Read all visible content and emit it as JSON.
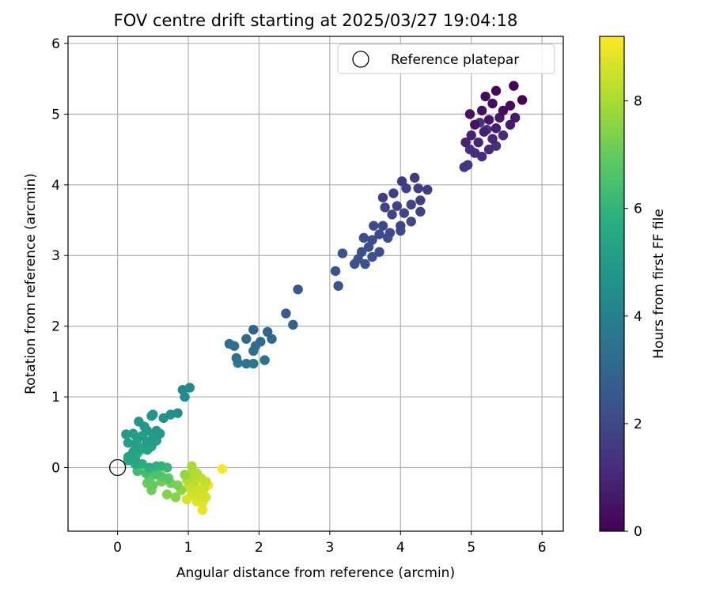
{
  "chart_data": {
    "type": "scatter",
    "title": "FOV centre drift starting at 2025/03/27 19:04:18",
    "xlabel": "Angular distance from reference (arcmin)",
    "ylabel": "Rotation from reference (arcmin)",
    "xlim": [
      -0.7,
      6.3
    ],
    "ylim": [
      -0.9,
      6.1
    ],
    "xticks": [
      0,
      1,
      2,
      3,
      4,
      5,
      6
    ],
    "yticks": [
      0,
      1,
      2,
      3,
      4,
      5,
      6
    ],
    "grid": true,
    "legend": {
      "placement": "top-right",
      "entries": [
        "Reference platepar"
      ]
    },
    "reference_point": {
      "x": 0,
      "y": 0,
      "label": "Reference platepar"
    },
    "colorbar": {
      "label": "Hours from first FF file",
      "colormap": "viridis",
      "range": [
        0,
        9.2
      ],
      "ticks": [
        0,
        2,
        4,
        6,
        8
      ]
    },
    "points": [
      {
        "x": 5.6,
        "y": 5.4,
        "h": 0.05
      },
      {
        "x": 5.72,
        "y": 5.2,
        "h": 0.1
      },
      {
        "x": 5.35,
        "y": 5.33,
        "h": 0.15
      },
      {
        "x": 5.2,
        "y": 5.25,
        "h": 0.2
      },
      {
        "x": 5.55,
        "y": 5.12,
        "h": 0.25
      },
      {
        "x": 5.45,
        "y": 5.05,
        "h": 0.3
      },
      {
        "x": 5.3,
        "y": 5.15,
        "h": 0.35
      },
      {
        "x": 5.15,
        "y": 5.05,
        "h": 0.4
      },
      {
        "x": 4.98,
        "y": 5.0,
        "h": 0.45
      },
      {
        "x": 5.05,
        "y": 4.85,
        "h": 0.5
      },
      {
        "x": 5.25,
        "y": 4.92,
        "h": 0.55
      },
      {
        "x": 5.4,
        "y": 4.95,
        "h": 0.6
      },
      {
        "x": 5.62,
        "y": 4.95,
        "h": 0.65
      },
      {
        "x": 5.55,
        "y": 4.85,
        "h": 0.7
      },
      {
        "x": 5.35,
        "y": 4.8,
        "h": 0.75
      },
      {
        "x": 5.18,
        "y": 4.75,
        "h": 0.8
      },
      {
        "x": 5.0,
        "y": 4.7,
        "h": 0.85
      },
      {
        "x": 4.92,
        "y": 4.6,
        "h": 0.9
      },
      {
        "x": 5.1,
        "y": 4.6,
        "h": 0.95
      },
      {
        "x": 5.3,
        "y": 4.65,
        "h": 1.0
      },
      {
        "x": 5.45,
        "y": 4.7,
        "h": 1.05
      },
      {
        "x": 5.25,
        "y": 4.5,
        "h": 1.1
      },
      {
        "x": 5.05,
        "y": 4.45,
        "h": 1.15
      },
      {
        "x": 5.15,
        "y": 4.4,
        "h": 1.2
      },
      {
        "x": 4.98,
        "y": 4.5,
        "h": 1.25
      },
      {
        "x": 5.35,
        "y": 4.55,
        "h": 1.3
      },
      {
        "x": 5.12,
        "y": 4.88,
        "h": 1.35
      },
      {
        "x": 5.22,
        "y": 4.78,
        "h": 1.4
      },
      {
        "x": 4.9,
        "y": 4.25,
        "h": 1.45
      },
      {
        "x": 4.95,
        "y": 4.28,
        "h": 1.5
      },
      {
        "x": 4.2,
        "y": 4.1,
        "h": 1.55
      },
      {
        "x": 4.02,
        "y": 4.05,
        "h": 1.6
      },
      {
        "x": 4.38,
        "y": 3.93,
        "h": 1.62
      },
      {
        "x": 4.25,
        "y": 3.95,
        "h": 1.65
      },
      {
        "x": 4.08,
        "y": 3.95,
        "h": 1.7
      },
      {
        "x": 3.9,
        "y": 3.88,
        "h": 1.72
      },
      {
        "x": 3.75,
        "y": 3.82,
        "h": 1.75
      },
      {
        "x": 4.28,
        "y": 3.78,
        "h": 1.78
      },
      {
        "x": 4.15,
        "y": 3.72,
        "h": 1.8
      },
      {
        "x": 3.95,
        "y": 3.7,
        "h": 1.82
      },
      {
        "x": 3.78,
        "y": 3.68,
        "h": 1.85
      },
      {
        "x": 4.28,
        "y": 3.62,
        "h": 1.88
      },
      {
        "x": 4.05,
        "y": 3.6,
        "h": 1.9
      },
      {
        "x": 3.88,
        "y": 3.58,
        "h": 1.92
      },
      {
        "x": 4.15,
        "y": 3.48,
        "h": 1.95
      },
      {
        "x": 4.0,
        "y": 3.42,
        "h": 1.97
      },
      {
        "x": 3.75,
        "y": 3.42,
        "h": 2.0
      },
      {
        "x": 3.62,
        "y": 3.42,
        "h": 2.02
      },
      {
        "x": 4.0,
        "y": 3.35,
        "h": 2.05
      },
      {
        "x": 3.85,
        "y": 3.32,
        "h": 2.07
      },
      {
        "x": 3.7,
        "y": 3.3,
        "h": 2.1
      },
      {
        "x": 3.82,
        "y": 3.25,
        "h": 2.12
      },
      {
        "x": 3.6,
        "y": 3.22,
        "h": 2.15
      },
      {
        "x": 3.48,
        "y": 3.25,
        "h": 2.17
      },
      {
        "x": 3.55,
        "y": 3.12,
        "h": 2.2
      },
      {
        "x": 3.7,
        "y": 3.05,
        "h": 2.22
      },
      {
        "x": 3.45,
        "y": 3.05,
        "h": 2.25
      },
      {
        "x": 3.6,
        "y": 2.98,
        "h": 2.27
      },
      {
        "x": 3.4,
        "y": 2.95,
        "h": 2.3
      },
      {
        "x": 3.5,
        "y": 2.88,
        "h": 2.32
      },
      {
        "x": 3.35,
        "y": 2.88,
        "h": 2.35
      },
      {
        "x": 3.18,
        "y": 3.03,
        "h": 2.38
      },
      {
        "x": 3.08,
        "y": 2.78,
        "h": 2.4
      },
      {
        "x": 3.12,
        "y": 2.57,
        "h": 2.45
      },
      {
        "x": 2.55,
        "y": 2.52,
        "h": 2.55
      },
      {
        "x": 2.38,
        "y": 2.18,
        "h": 2.65
      },
      {
        "x": 2.48,
        "y": 2.02,
        "h": 2.75
      },
      {
        "x": 1.92,
        "y": 1.95,
        "h": 3.0
      },
      {
        "x": 2.12,
        "y": 1.92,
        "h": 3.05
      },
      {
        "x": 2.18,
        "y": 1.82,
        "h": 3.1
      },
      {
        "x": 1.82,
        "y": 1.82,
        "h": 3.15
      },
      {
        "x": 2.02,
        "y": 1.78,
        "h": 3.2
      },
      {
        "x": 1.95,
        "y": 1.72,
        "h": 3.25
      },
      {
        "x": 1.58,
        "y": 1.75,
        "h": 3.3
      },
      {
        "x": 1.65,
        "y": 1.72,
        "h": 3.35
      },
      {
        "x": 1.92,
        "y": 1.65,
        "h": 3.4
      },
      {
        "x": 1.68,
        "y": 1.55,
        "h": 3.45
      },
      {
        "x": 2.08,
        "y": 1.52,
        "h": 3.5
      },
      {
        "x": 1.7,
        "y": 1.48,
        "h": 3.55
      },
      {
        "x": 1.82,
        "y": 1.47,
        "h": 3.6
      },
      {
        "x": 1.92,
        "y": 1.47,
        "h": 3.65
      },
      {
        "x": 1.02,
        "y": 1.13,
        "h": 4.3
      },
      {
        "x": 0.92,
        "y": 1.1,
        "h": 4.35
      },
      {
        "x": 0.95,
        "y": 1.0,
        "h": 4.4
      },
      {
        "x": 0.85,
        "y": 0.77,
        "h": 4.5
      },
      {
        "x": 0.75,
        "y": 0.75,
        "h": 4.55
      },
      {
        "x": 0.65,
        "y": 0.7,
        "h": 4.6
      },
      {
        "x": 0.5,
        "y": 0.75,
        "h": 4.7
      },
      {
        "x": 0.48,
        "y": 0.73,
        "h": 4.75
      },
      {
        "x": 0.3,
        "y": 0.65,
        "h": 4.8
      },
      {
        "x": 0.38,
        "y": 0.58,
        "h": 4.85
      },
      {
        "x": 0.42,
        "y": 0.52,
        "h": 4.9
      },
      {
        "x": 0.55,
        "y": 0.52,
        "h": 4.92
      },
      {
        "x": 0.6,
        "y": 0.48,
        "h": 4.95
      },
      {
        "x": 0.12,
        "y": 0.47,
        "h": 5.0
      },
      {
        "x": 0.22,
        "y": 0.48,
        "h": 5.02
      },
      {
        "x": 0.35,
        "y": 0.45,
        "h": 5.05
      },
      {
        "x": 0.5,
        "y": 0.42,
        "h": 5.08
      },
      {
        "x": 0.28,
        "y": 0.4,
        "h": 5.1
      },
      {
        "x": 0.42,
        "y": 0.37,
        "h": 5.12
      },
      {
        "x": 0.55,
        "y": 0.38,
        "h": 5.15
      },
      {
        "x": 0.15,
        "y": 0.35,
        "h": 5.18
      },
      {
        "x": 0.25,
        "y": 0.32,
        "h": 5.2
      },
      {
        "x": 0.38,
        "y": 0.3,
        "h": 5.22
      },
      {
        "x": 0.48,
        "y": 0.3,
        "h": 5.25
      },
      {
        "x": 0.32,
        "y": 0.25,
        "h": 5.28
      },
      {
        "x": 0.22,
        "y": 0.22,
        "h": 5.3
      },
      {
        "x": 0.42,
        "y": 0.25,
        "h": 5.32
      },
      {
        "x": 0.15,
        "y": 0.15,
        "h": 5.35
      },
      {
        "x": 0.25,
        "y": 0.12,
        "h": 5.4
      },
      {
        "x": 0.15,
        "y": 0.1,
        "h": 5.45
      },
      {
        "x": 0.28,
        "y": 0.2,
        "h": 6.2
      },
      {
        "x": 0.25,
        "y": 0.05,
        "h": 5.6
      },
      {
        "x": 0.35,
        "y": 0.05,
        "h": 5.7
      },
      {
        "x": 0.45,
        "y": 0.0,
        "h": 5.8
      },
      {
        "x": 0.55,
        "y": 0.02,
        "h": 5.9
      },
      {
        "x": 0.62,
        "y": 0.02,
        "h": 6.0
      },
      {
        "x": 0.7,
        "y": 0.0,
        "h": 6.1
      },
      {
        "x": 0.28,
        "y": -0.05,
        "h": 6.3
      },
      {
        "x": 0.4,
        "y": -0.08,
        "h": 6.4
      },
      {
        "x": 0.48,
        "y": -0.05,
        "h": 6.5
      },
      {
        "x": 0.55,
        "y": -0.1,
        "h": 6.6
      },
      {
        "x": 0.62,
        "y": -0.12,
        "h": 6.7
      },
      {
        "x": 0.72,
        "y": -0.15,
        "h": 6.8
      },
      {
        "x": 0.45,
        "y": -0.15,
        "h": 6.9
      },
      {
        "x": 0.5,
        "y": -0.25,
        "h": 7.0
      },
      {
        "x": 0.42,
        "y": -0.22,
        "h": 7.05
      },
      {
        "x": 0.48,
        "y": -0.32,
        "h": 7.1
      },
      {
        "x": 0.62,
        "y": -0.2,
        "h": 7.15
      },
      {
        "x": 0.75,
        "y": -0.22,
        "h": 7.2
      },
      {
        "x": 0.85,
        "y": -0.25,
        "h": 7.3
      },
      {
        "x": 0.7,
        "y": -0.38,
        "h": 7.4
      },
      {
        "x": 0.82,
        "y": -0.42,
        "h": 7.5
      },
      {
        "x": 0.9,
        "y": -0.32,
        "h": 7.6
      },
      {
        "x": 0.95,
        "y": -0.1,
        "h": 7.7
      },
      {
        "x": 1.05,
        "y": 0.02,
        "h": 8.0
      },
      {
        "x": 1.02,
        "y": -0.1,
        "h": 8.1
      },
      {
        "x": 1.12,
        "y": -0.08,
        "h": 8.15
      },
      {
        "x": 0.98,
        "y": -0.18,
        "h": 8.2
      },
      {
        "x": 1.08,
        "y": -0.2,
        "h": 8.25
      },
      {
        "x": 1.18,
        "y": -0.15,
        "h": 8.3
      },
      {
        "x": 1.25,
        "y": -0.2,
        "h": 8.35
      },
      {
        "x": 1.0,
        "y": -0.28,
        "h": 8.4
      },
      {
        "x": 1.1,
        "y": -0.3,
        "h": 8.45
      },
      {
        "x": 1.22,
        "y": -0.3,
        "h": 8.5
      },
      {
        "x": 1.05,
        "y": -0.38,
        "h": 8.55
      },
      {
        "x": 1.15,
        "y": -0.4,
        "h": 8.6
      },
      {
        "x": 1.25,
        "y": -0.42,
        "h": 8.65
      },
      {
        "x": 0.98,
        "y": -0.45,
        "h": 8.7
      },
      {
        "x": 1.12,
        "y": -0.48,
        "h": 8.75
      },
      {
        "x": 1.2,
        "y": -0.5,
        "h": 8.8
      },
      {
        "x": 1.05,
        "y": -0.22,
        "h": 8.85
      },
      {
        "x": 1.15,
        "y": -0.25,
        "h": 8.9
      },
      {
        "x": 1.2,
        "y": -0.6,
        "h": 8.95
      },
      {
        "x": 1.28,
        "y": -0.25,
        "h": 9.0
      },
      {
        "x": 1.12,
        "y": -0.12,
        "h": 9.05
      },
      {
        "x": 1.2,
        "y": -0.35,
        "h": 9.1
      },
      {
        "x": 1.48,
        "y": -0.02,
        "h": 9.2
      }
    ]
  }
}
